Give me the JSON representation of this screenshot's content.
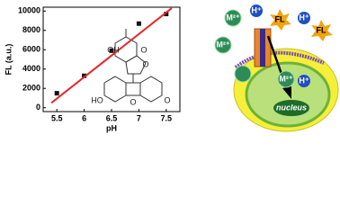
{
  "chart_data": {
    "type": "scatter",
    "x_label": "pH",
    "y_label": "FL (a.u.)",
    "xlim": [
      5.25,
      7.75
    ],
    "xticks": [
      5.5,
      6.0,
      6.5,
      7.0,
      7.5
    ],
    "ylim": [
      -400,
      10400
    ],
    "yticks": [
      0,
      2000,
      4000,
      6000,
      8000,
      10000
    ],
    "series": [
      {
        "type": "scatter",
        "color": "#111111",
        "x": [
          5.5,
          6.0,
          6.5,
          7.0,
          7.5
        ],
        "values": [
          1500,
          3300,
          5900,
          8700,
          9700
        ]
      },
      {
        "type": "line",
        "color": "#e8262a",
        "x": [
          5.4,
          7.6
        ],
        "values": [
          500,
          10300
        ]
      }
    ],
    "annotations": [
      "OH",
      "O",
      "O",
      "HO",
      "O",
      "O"
    ]
  },
  "diagram": {
    "labels": [
      "M²⁺",
      "H⁺",
      "FL",
      "H⁺",
      "FL",
      "M²⁺",
      "M²⁺",
      "H⁺",
      "nucleus"
    ]
  }
}
